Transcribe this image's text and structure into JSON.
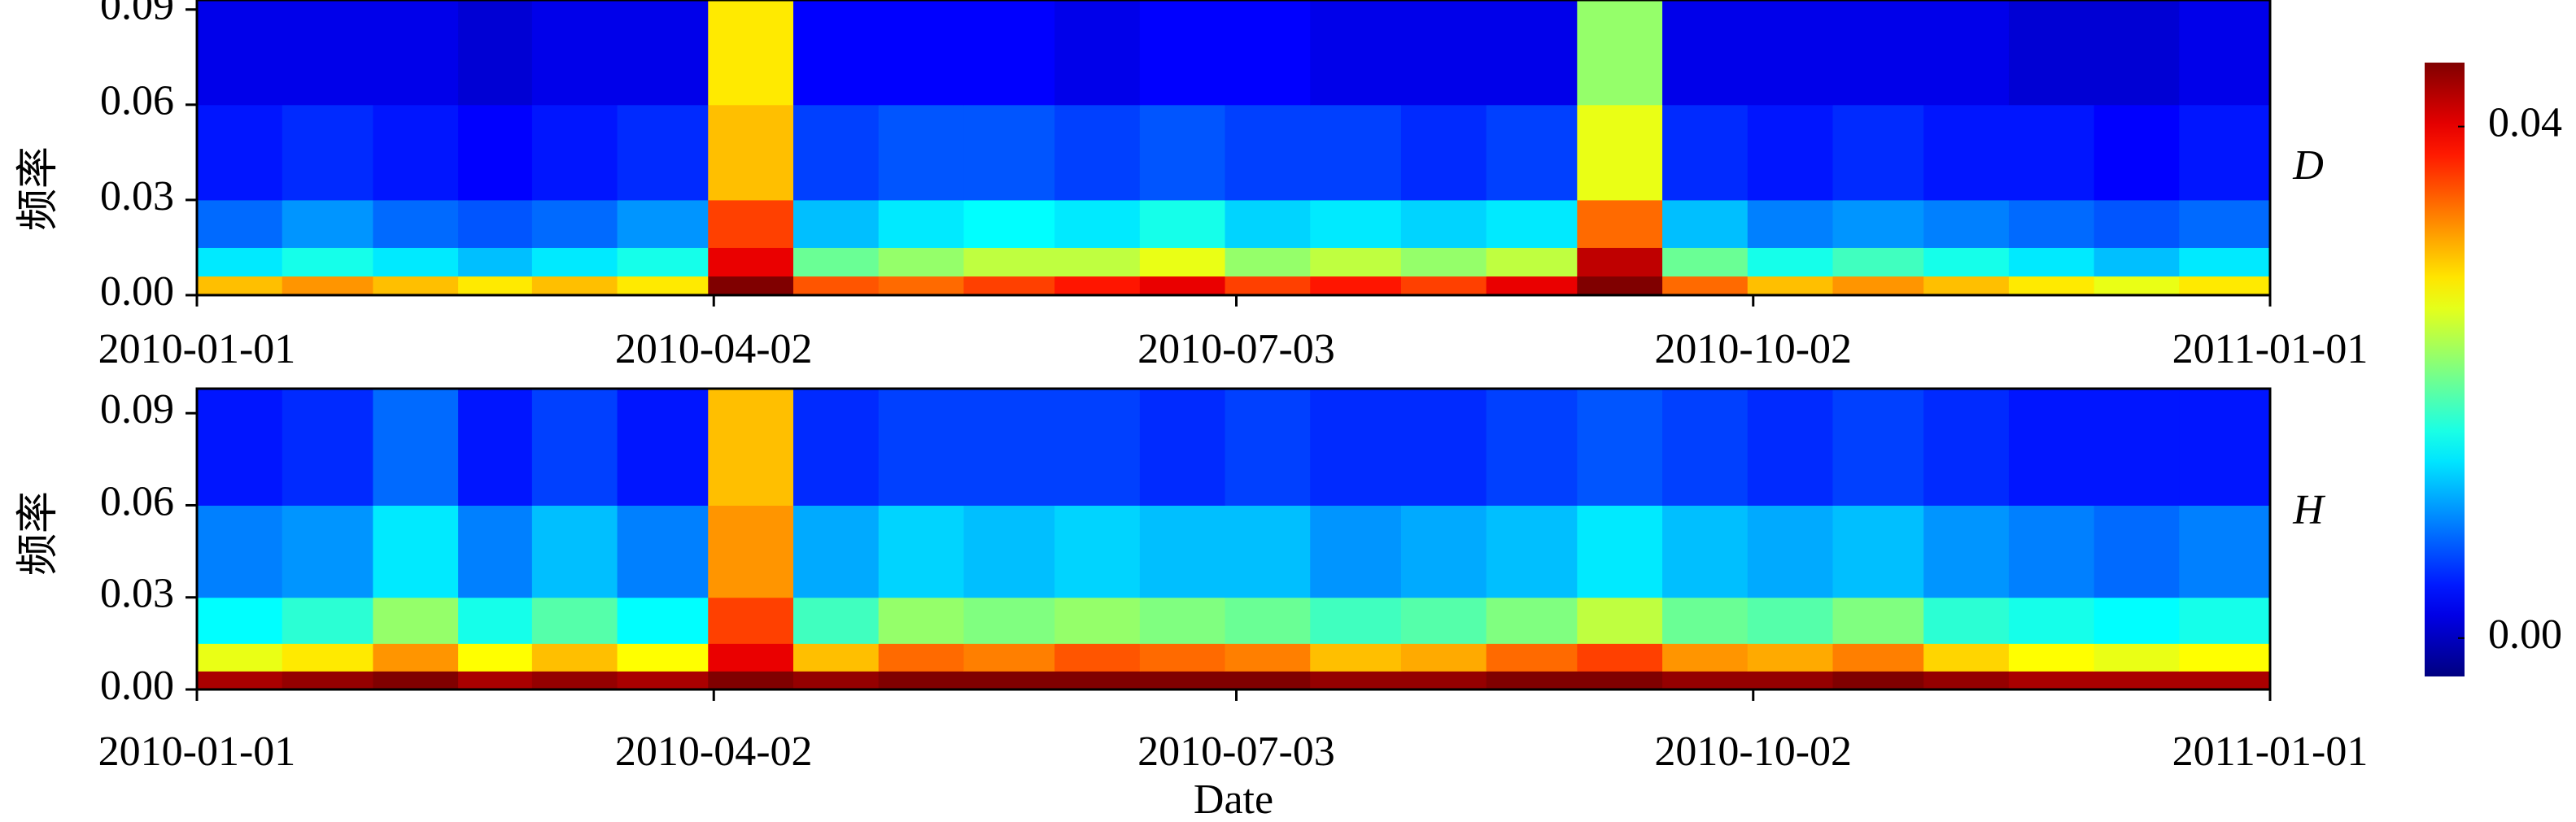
{
  "chart_data": [
    {
      "type": "heatmap",
      "label": "D",
      "ylabel": "频率",
      "xbins": [
        "2010-01-01",
        "2010-01-16",
        "2010-02-01",
        "2010-02-16",
        "2010-03-01",
        "2010-03-16",
        "2010-04-01",
        "2010-04-16",
        "2010-05-01",
        "2010-05-16",
        "2010-06-01",
        "2010-06-16",
        "2010-07-01",
        "2010-07-16",
        "2010-08-01",
        "2010-08-16",
        "2010-09-01",
        "2010-09-16",
        "2010-10-01",
        "2010-10-16",
        "2010-11-01",
        "2010-11-16",
        "2010-12-01",
        "2010-12-16",
        "2011-01-01"
      ],
      "ybins": [
        0,
        0.006,
        0.015,
        0.03,
        0.06,
        0.1
      ],
      "values": [
        [
          0.03,
          0.032,
          0.03,
          0.028,
          0.03,
          0.028,
          0.045,
          0.035,
          0.034,
          0.036,
          0.038,
          0.04,
          0.036,
          0.038,
          0.036,
          0.04,
          0.045,
          0.034,
          0.03,
          0.032,
          0.03,
          0.028,
          0.026,
          0.028
        ],
        [
          0.014,
          0.016,
          0.014,
          0.012,
          0.014,
          0.016,
          0.04,
          0.02,
          0.022,
          0.024,
          0.024,
          0.026,
          0.022,
          0.024,
          0.022,
          0.024,
          0.042,
          0.02,
          0.016,
          0.018,
          0.016,
          0.014,
          0.012,
          0.014
        ],
        [
          0.008,
          0.01,
          0.008,
          0.007,
          0.008,
          0.01,
          0.036,
          0.012,
          0.014,
          0.015,
          0.014,
          0.016,
          0.013,
          0.014,
          0.013,
          0.014,
          0.034,
          0.012,
          0.009,
          0.01,
          0.009,
          0.008,
          0.007,
          0.008
        ],
        [
          0.004,
          0.005,
          0.004,
          0.003,
          0.004,
          0.005,
          0.03,
          0.006,
          0.007,
          0.007,
          0.006,
          0.007,
          0.006,
          0.006,
          0.005,
          0.006,
          0.026,
          0.005,
          0.004,
          0.005,
          0.004,
          0.004,
          0.003,
          0.004
        ],
        [
          0.002,
          0.002,
          0.002,
          0.001,
          0.002,
          0.002,
          0.028,
          0.003,
          0.003,
          0.003,
          0.002,
          0.003,
          0.003,
          0.002,
          0.002,
          0.002,
          0.022,
          0.002,
          0.002,
          0.002,
          0.002,
          0.001,
          0.001,
          0.002
        ]
      ],
      "xlim": [
        "2010-01-01",
        "2011-01-01"
      ],
      "xticks": [
        "2010-01-01",
        "2010-04-02",
        "2010-07-03",
        "2010-10-02",
        "2011-01-01"
      ],
      "ylim": [
        0,
        0.093
      ],
      "yticks": [
        {
          "value": 0,
          "label": "0.00"
        },
        {
          "value": 0.03,
          "label": "0.03"
        },
        {
          "value": 0.06,
          "label": "0.06"
        },
        {
          "value": 0.09,
          "label": "0.09"
        }
      ]
    },
    {
      "type": "heatmap",
      "label": "H",
      "ylabel": "频率",
      "xlabel": "Date",
      "xbins": [
        "2010-01-01",
        "2010-01-16",
        "2010-02-01",
        "2010-02-16",
        "2010-03-01",
        "2010-03-16",
        "2010-04-01",
        "2010-04-16",
        "2010-05-01",
        "2010-05-16",
        "2010-06-01",
        "2010-06-16",
        "2010-07-01",
        "2010-07-16",
        "2010-08-01",
        "2010-08-16",
        "2010-09-01",
        "2010-09-16",
        "2010-10-01",
        "2010-10-16",
        "2010-11-01",
        "2010-11-16",
        "2010-12-01",
        "2010-12-16",
        "2011-01-01"
      ],
      "ybins": [
        0,
        0.006,
        0.015,
        0.03,
        0.06,
        0.1
      ],
      "values": [
        [
          0.043,
          0.044,
          0.045,
          0.043,
          0.044,
          0.043,
          0.045,
          0.044,
          0.045,
          0.045,
          0.045,
          0.045,
          0.045,
          0.044,
          0.044,
          0.045,
          0.045,
          0.044,
          0.044,
          0.045,
          0.044,
          0.043,
          0.043,
          0.043
        ],
        [
          0.026,
          0.028,
          0.032,
          0.027,
          0.03,
          0.027,
          0.04,
          0.03,
          0.034,
          0.033,
          0.035,
          0.034,
          0.033,
          0.03,
          0.031,
          0.034,
          0.036,
          0.032,
          0.031,
          0.033,
          0.029,
          0.027,
          0.026,
          0.027
        ],
        [
          0.015,
          0.017,
          0.022,
          0.016,
          0.019,
          0.015,
          0.036,
          0.018,
          0.022,
          0.021,
          0.022,
          0.021,
          0.02,
          0.018,
          0.019,
          0.021,
          0.024,
          0.02,
          0.019,
          0.021,
          0.017,
          0.016,
          0.015,
          0.016
        ],
        [
          0.009,
          0.01,
          0.014,
          0.009,
          0.012,
          0.009,
          0.032,
          0.011,
          0.013,
          0.012,
          0.013,
          0.012,
          0.012,
          0.01,
          0.011,
          0.012,
          0.014,
          0.012,
          0.011,
          0.012,
          0.01,
          0.009,
          0.008,
          0.009
        ],
        [
          0.004,
          0.005,
          0.008,
          0.004,
          0.006,
          0.004,
          0.03,
          0.005,
          0.006,
          0.006,
          0.006,
          0.005,
          0.006,
          0.005,
          0.005,
          0.006,
          0.007,
          0.006,
          0.005,
          0.006,
          0.005,
          0.004,
          0.004,
          0.004
        ]
      ],
      "xlim": [
        "2010-01-01",
        "2011-01-01"
      ],
      "xticks": [
        "2010-01-01",
        "2010-04-02",
        "2010-07-03",
        "2010-10-02",
        "2011-01-01"
      ],
      "ylim": [
        0,
        0.098
      ],
      "yticks": [
        {
          "value": 0,
          "label": "0.00"
        },
        {
          "value": 0.03,
          "label": "0.03"
        },
        {
          "value": 0.06,
          "label": "0.06"
        },
        {
          "value": 0.09,
          "label": "0.09"
        }
      ]
    }
  ],
  "colorbar": {
    "clim": [
      -0.003,
      0.045
    ],
    "ticks": [
      {
        "value": 0,
        "label": "0.00"
      },
      {
        "value": 0.04,
        "label": "0.04"
      }
    ]
  }
}
